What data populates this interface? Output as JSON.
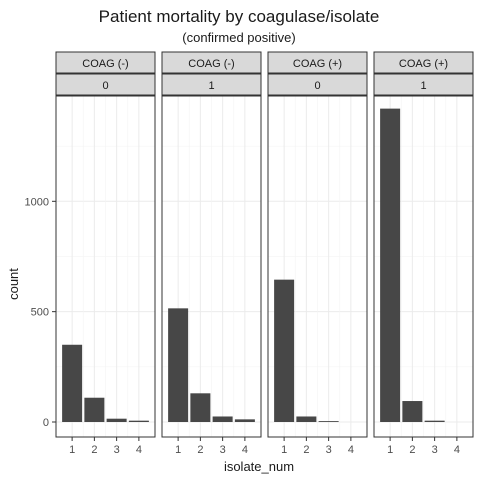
{
  "chart_data": {
    "type": "bar",
    "title": "Patient mortality by coagulase/isolate",
    "subtitle": "(confirmed positive)",
    "xlabel": "isolate_num",
    "ylabel": "count",
    "categories": [
      "1",
      "2",
      "3",
      "4"
    ],
    "ylim": [
      0,
      1450
    ],
    "yticks": [
      0,
      500,
      1000
    ],
    "grid": true,
    "facets": [
      {
        "strip_top": "COAG (-)",
        "strip_bottom": "0",
        "values": [
          350,
          110,
          15,
          6
        ]
      },
      {
        "strip_top": "COAG (-)",
        "strip_bottom": "1",
        "values": [
          515,
          130,
          25,
          12
        ]
      },
      {
        "strip_top": "COAG (+)",
        "strip_bottom": "0",
        "values": [
          645,
          25,
          4,
          0
        ]
      },
      {
        "strip_top": "COAG (+)",
        "strip_bottom": "1",
        "values": [
          1420,
          95,
          6,
          0
        ]
      }
    ],
    "colors": {
      "bar": "#474747",
      "strip": "#d9d9d9",
      "grid": "#ebebeb"
    }
  }
}
